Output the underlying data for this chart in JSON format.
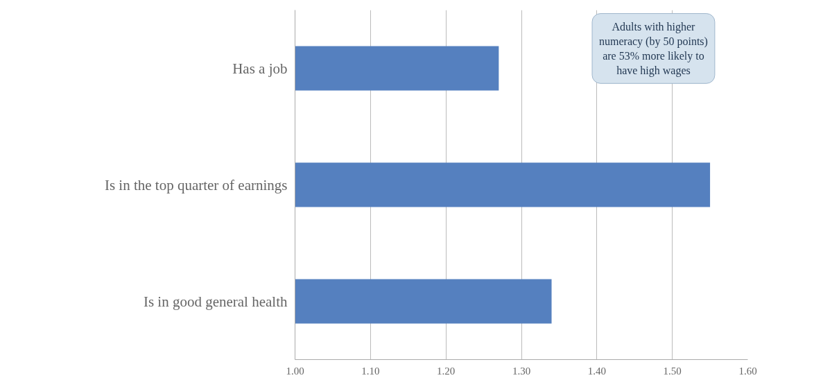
{
  "chart_data": {
    "type": "bar",
    "orientation": "horizontal",
    "categories": [
      "Has a job",
      "Is in the top quarter of earnings",
      "Is in good general health"
    ],
    "values": [
      1.27,
      1.55,
      1.34
    ],
    "color": "#5580bf",
    "xlim": [
      1.0,
      1.6
    ],
    "xticks": [
      {
        "value": 1.0,
        "label": "1.00"
      },
      {
        "value": 1.1,
        "label": "1.10"
      },
      {
        "value": 1.2,
        "label": "1.20"
      },
      {
        "value": 1.3,
        "label": "1.30"
      },
      {
        "value": 1.4,
        "label": "1.40"
      },
      {
        "value": 1.5,
        "label": "1.50"
      },
      {
        "value": 1.6,
        "label": "1.60"
      }
    ],
    "grid": "x",
    "annotations": [
      "Adults with higher numeracy (by 50 points) are 53% more likely to have high wages"
    ]
  }
}
